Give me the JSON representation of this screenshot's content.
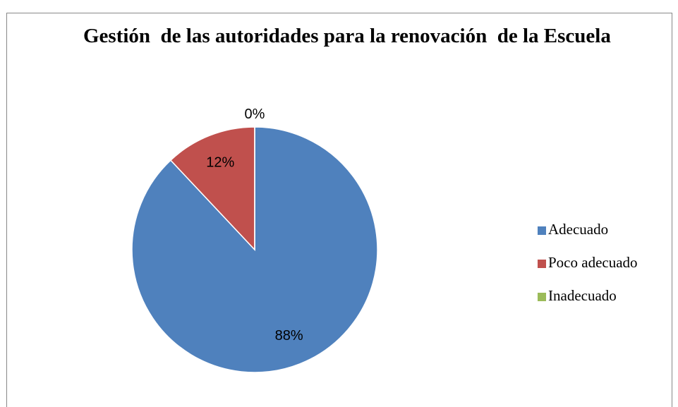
{
  "chart_data": {
    "type": "pie",
    "title": "Gestión  de las autoridades para la renovación  de la Escuela",
    "categories": [
      "Adecuado",
      "Poco adecuado",
      "Inadecuado"
    ],
    "values": [
      88,
      12,
      0
    ],
    "value_labels": [
      "88%",
      "12%",
      "0%"
    ],
    "colors": [
      "#4f81bd",
      "#c0504d",
      "#9bbb59"
    ],
    "legend": "right"
  }
}
